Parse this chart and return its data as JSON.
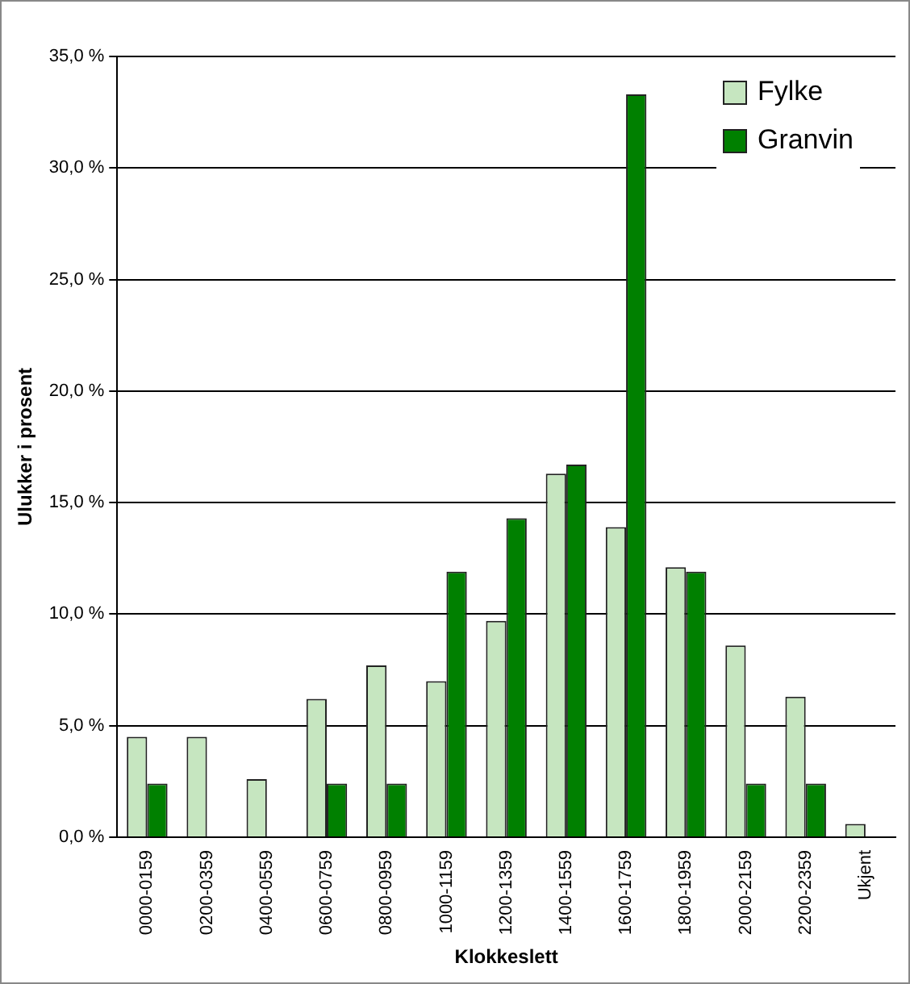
{
  "chart_data": {
    "type": "bar",
    "xlabel": "Klokkeslett",
    "ylabel": "Ulukker i prosent",
    "categories": [
      "0000-0159",
      "0200-0359",
      "0400-0559",
      "0600-0759",
      "0800-0959",
      "1000-1159",
      "1200-1359",
      "1400-1559",
      "1600-1759",
      "1800-1959",
      "2000-2159",
      "2200-2359",
      "Ukjent"
    ],
    "series": [
      {
        "name": "Fylke",
        "color": "#c6e6c0",
        "values": [
          4.5,
          4.5,
          2.6,
          6.2,
          7.7,
          7.0,
          9.7,
          16.3,
          13.9,
          12.1,
          8.6,
          6.3,
          0.6
        ]
      },
      {
        "name": "Granvin",
        "color": "#008000",
        "values": [
          2.4,
          0,
          0,
          2.4,
          2.4,
          11.9,
          14.3,
          16.7,
          33.3,
          11.9,
          2.4,
          2.4,
          0
        ]
      }
    ],
    "ylim": [
      0,
      35
    ],
    "yticks": [
      {
        "value": 0,
        "label": "0,0 %"
      },
      {
        "value": 5,
        "label": "5,0 %"
      },
      {
        "value": 10,
        "label": "10,0 %"
      },
      {
        "value": 15,
        "label": "15,0 %"
      },
      {
        "value": 20,
        "label": "20,0 %"
      },
      {
        "value": 25,
        "label": "25,0 %"
      },
      {
        "value": 30,
        "label": "30,0 %"
      },
      {
        "value": 35,
        "label": "35,0 %"
      }
    ],
    "grid": "y",
    "legend": "top right"
  }
}
